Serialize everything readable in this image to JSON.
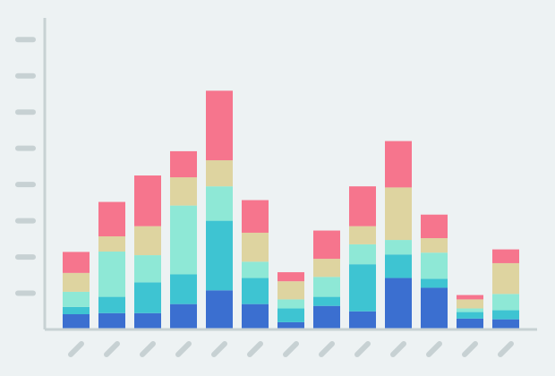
{
  "chart_data": {
    "type": "bar",
    "stacked": true,
    "title": "",
    "xlabel": "",
    "ylabel": "",
    "ylim": [
      0,
      8.6
    ],
    "grid": false,
    "legend": "none",
    "tick_labels": "placeholder-pills",
    "categories": [
      "",
      "",
      "",
      "",
      "",
      "",
      "",
      "",
      "",
      "",
      "",
      "",
      ""
    ],
    "series": [
      {
        "color": "#3b6fd0",
        "values": [
          0.42,
          0.45,
          0.45,
          0.7,
          1.08,
          0.7,
          0.2,
          0.65,
          0.5,
          1.42,
          1.15,
          0.3,
          0.28
        ]
      },
      {
        "color": "#3ec4d2",
        "values": [
          0.2,
          0.45,
          0.85,
          0.82,
          1.92,
          0.72,
          0.38,
          0.25,
          1.3,
          0.65,
          0.25,
          0.18,
          0.25
        ]
      },
      {
        "color": "#8ee8d6",
        "values": [
          0.42,
          1.25,
          0.75,
          1.9,
          0.95,
          0.45,
          0.25,
          0.55,
          0.55,
          0.4,
          0.72,
          0.1,
          0.45
        ]
      },
      {
        "color": "#ded4a0",
        "values": [
          0.52,
          0.42,
          0.8,
          0.78,
          0.72,
          0.8,
          0.5,
          0.5,
          0.5,
          1.45,
          0.4,
          0.25,
          0.85
        ]
      },
      {
        "color": "#f6758d",
        "values": [
          0.58,
          0.95,
          1.4,
          0.72,
          1.92,
          0.9,
          0.25,
          0.78,
          1.1,
          1.28,
          0.65,
          0.12,
          0.38
        ]
      }
    ]
  },
  "colors": {
    "background": "#edf2f3",
    "axis": "#c7d1d3",
    "placeholder": "#c7d1d3"
  }
}
